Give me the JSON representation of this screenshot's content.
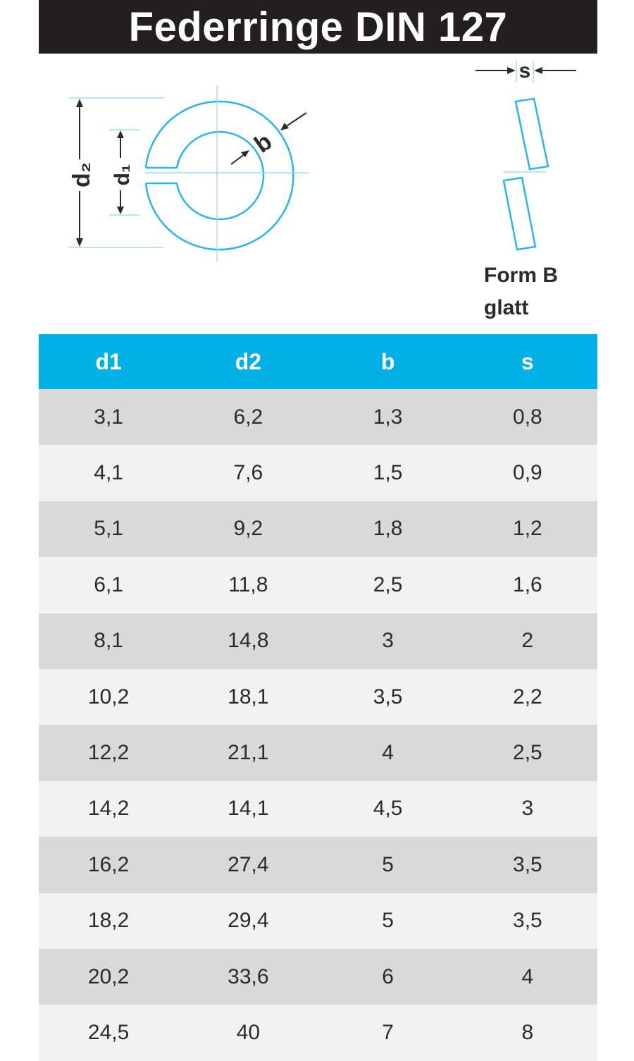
{
  "title": "Federringe DIN 127",
  "drawing": {
    "label_d2": "d₂",
    "label_d1": "d₁",
    "label_b": "b",
    "label_s": "s",
    "line_color": "#29b5e8",
    "form_line1": "Form B",
    "form_line2": "glatt"
  },
  "table": {
    "header_color": "#00b0e5",
    "columns": [
      "d1",
      "d2",
      "b",
      "s"
    ],
    "rows": [
      [
        "3,1",
        "6,2",
        "1,3",
        "0,8"
      ],
      [
        "4,1",
        "7,6",
        "1,5",
        "0,9"
      ],
      [
        "5,1",
        "9,2",
        "1,8",
        "1,2"
      ],
      [
        "6,1",
        "11,8",
        "2,5",
        "1,6"
      ],
      [
        "8,1",
        "14,8",
        "3",
        "2"
      ],
      [
        "10,2",
        "18,1",
        "3,5",
        "2,2"
      ],
      [
        "12,2",
        "21,1",
        "4",
        "2,5"
      ],
      [
        "14,2",
        "14,1",
        "4,5",
        "3"
      ],
      [
        "16,2",
        "27,4",
        "5",
        "3,5"
      ],
      [
        "18,2",
        "29,4",
        "5",
        "3,5"
      ],
      [
        "20,2",
        "33,6",
        "6",
        "4"
      ],
      [
        "24,5",
        "40",
        "7",
        "8"
      ]
    ]
  }
}
